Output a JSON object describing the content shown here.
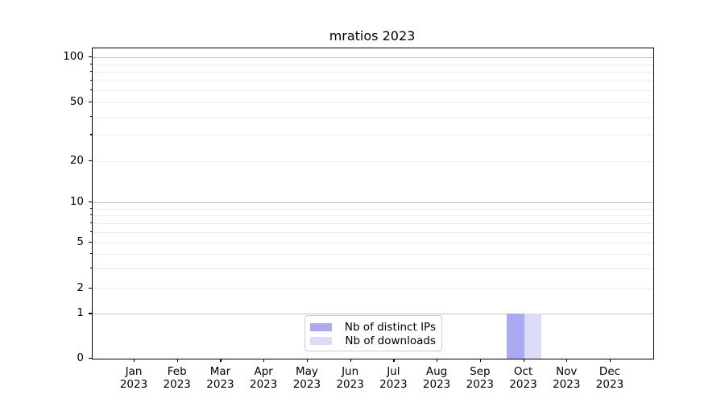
{
  "figure": {
    "background": "#ffffff"
  },
  "chart_data": {
    "type": "bar",
    "title": "mratios 2023",
    "categories": [
      {
        "month": "Jan",
        "year": "2023"
      },
      {
        "month": "Feb",
        "year": "2023"
      },
      {
        "month": "Mar",
        "year": "2023"
      },
      {
        "month": "Apr",
        "year": "2023"
      },
      {
        "month": "May",
        "year": "2023"
      },
      {
        "month": "Jun",
        "year": "2023"
      },
      {
        "month": "Jul",
        "year": "2023"
      },
      {
        "month": "Aug",
        "year": "2023"
      },
      {
        "month": "Sep",
        "year": "2023"
      },
      {
        "month": "Oct",
        "year": "2023"
      },
      {
        "month": "Nov",
        "year": "2023"
      },
      {
        "month": "Dec",
        "year": "2023"
      }
    ],
    "series": [
      {
        "name": "Nb of distinct IPs",
        "color": "#a9a9f4",
        "values": [
          0,
          0,
          0,
          0,
          0,
          0,
          0,
          0,
          0,
          1,
          0,
          0
        ]
      },
      {
        "name": "Nb of downloads",
        "color": "#dcdcf8",
        "values": [
          0,
          0,
          0,
          0,
          0,
          0,
          0,
          0,
          0,
          1,
          0,
          0
        ]
      }
    ],
    "y_axis": {
      "scale": "symlog",
      "ticks": [
        0,
        1,
        2,
        5,
        10,
        20,
        50,
        100
      ],
      "minor_ticks": [
        3,
        4,
        6,
        7,
        8,
        9,
        30,
        40,
        60,
        70,
        80,
        90
      ],
      "limits": [
        0,
        110
      ]
    },
    "x_axis": {
      "label": ""
    },
    "legend": {
      "position": "lower center"
    },
    "grid": true,
    "colors": {
      "major_gridline": "#c3c3c3",
      "minor_gridline": "#ececec",
      "spine": "#000000"
    }
  }
}
